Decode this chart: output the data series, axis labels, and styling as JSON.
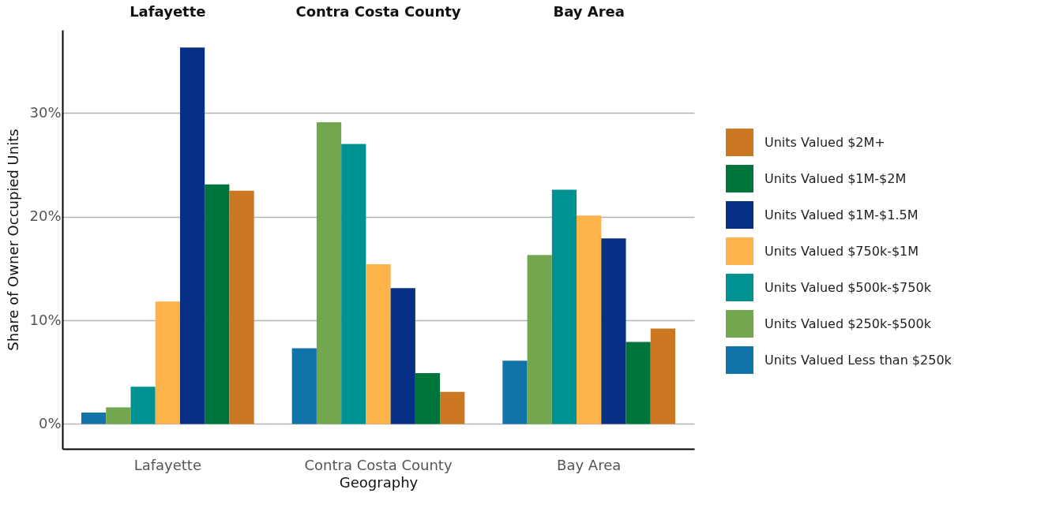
{
  "chart_data": {
    "type": "bar",
    "categories": [
      "Lafayette",
      "Contra Costa County",
      "Bay Area"
    ],
    "xlabel": "Geography",
    "ylabel": "Share of Owner Occupied Units",
    "ylim": [
      -2.4,
      38
    ],
    "yticks": [
      {
        "value": 0,
        "label": "0%"
      },
      {
        "value": 10,
        "label": "10%"
      },
      {
        "value": 20,
        "label": "20%"
      },
      {
        "value": 30,
        "label": "30%"
      }
    ],
    "grid": "y",
    "legend": "right",
    "series": [
      {
        "name": "Units Valued Less than $250k",
        "color": "#1273a8",
        "values": [
          1.1,
          7.3,
          6.1
        ]
      },
      {
        "name": "Units Valued $250k-$500k",
        "color": "#72a74f",
        "values": [
          1.6,
          29.1,
          16.3
        ]
      },
      {
        "name": "Units Valued $500k-$750k",
        "color": "#009292",
        "values": [
          3.6,
          27.0,
          22.6
        ]
      },
      {
        "name": "Units Valued $750k-$1M",
        "color": "#fdb24a",
        "values": [
          11.8,
          15.4,
          20.1
        ]
      },
      {
        "name": "Units Valued $1M-$1.5M",
        "color": "#082f86",
        "values": [
          36.3,
          13.1,
          17.9
        ]
      },
      {
        "name": "Units Valued $1M-$2M",
        "color": "#00753b",
        "values": [
          23.1,
          4.9,
          7.9
        ]
      },
      {
        "name": "Units Valued $2M+",
        "color": "#cc7722",
        "values": [
          22.5,
          3.1,
          9.2
        ]
      }
    ]
  }
}
